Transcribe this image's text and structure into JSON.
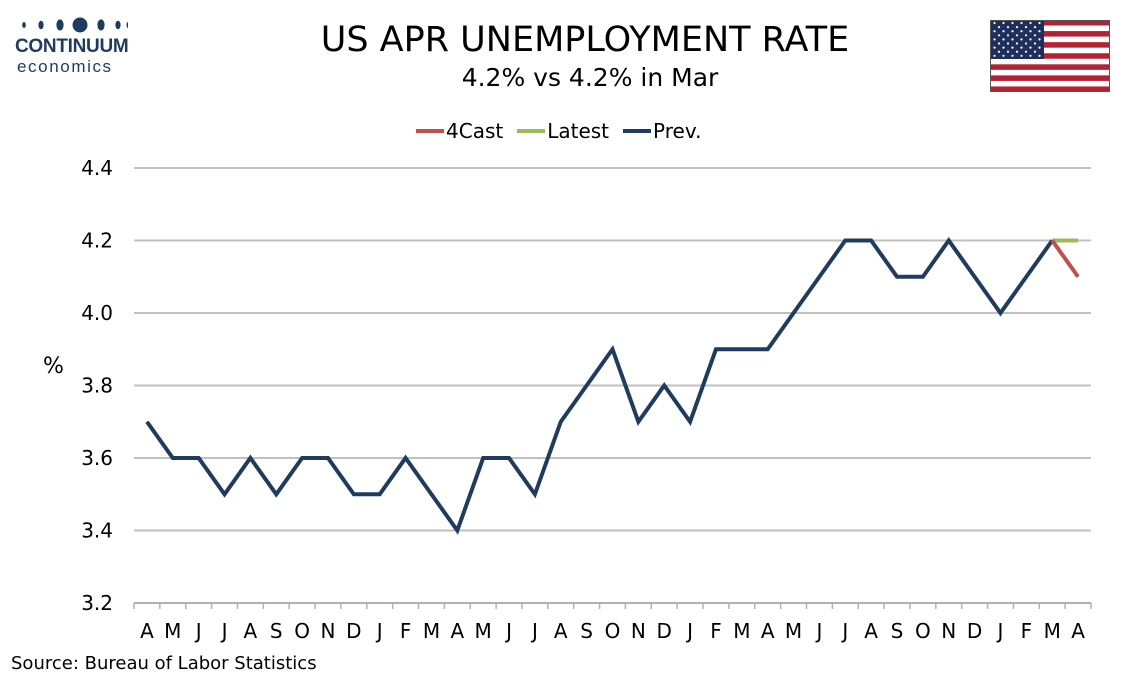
{
  "brand": {
    "name": "CONTINUUM",
    "sub": "economics"
  },
  "title": "US APR UNEMPLOYMENT RATE",
  "subtitle": "4.2% vs 4.2% in Mar",
  "source": "Source: Bureau of Labor Statistics",
  "flag_icon": "us-flag",
  "colors": {
    "forecast": "#c0504d",
    "latest": "#9bbb59",
    "previous": "#1f3b5e",
    "grid": "#c0c0c0"
  },
  "chart_data": {
    "type": "line",
    "title": "US APR UNEMPLOYMENT RATE",
    "subtitle": "4.2% vs 4.2% in Mar",
    "xlabel": "",
    "ylabel": "%",
    "ylim": [
      3.2,
      4.4
    ],
    "yticks": [
      "3.2",
      "3.4",
      "3.6",
      "3.8",
      "4.0",
      "4.2",
      "4.4"
    ],
    "grid": true,
    "legend_position": "top-center",
    "categories": [
      "A",
      "M",
      "J",
      "J",
      "A",
      "S",
      "O",
      "N",
      "D",
      "J",
      "F",
      "M",
      "A",
      "M",
      "J",
      "J",
      "A",
      "S",
      "O",
      "N",
      "D",
      "J",
      "F",
      "M",
      "A",
      "M",
      "J",
      "J",
      "A",
      "S",
      "O",
      "N",
      "D",
      "J",
      "F",
      "M",
      "A"
    ],
    "series": [
      {
        "name": "4Cast",
        "color": "#c0504d",
        "values": [
          null,
          null,
          null,
          null,
          null,
          null,
          null,
          null,
          null,
          null,
          null,
          null,
          null,
          null,
          null,
          null,
          null,
          null,
          null,
          null,
          null,
          null,
          null,
          null,
          null,
          null,
          null,
          null,
          null,
          null,
          null,
          null,
          null,
          null,
          null,
          4.2,
          4.1
        ]
      },
      {
        "name": "Latest",
        "color": "#9bbb59",
        "values": [
          null,
          null,
          null,
          null,
          null,
          null,
          null,
          null,
          null,
          null,
          null,
          null,
          null,
          null,
          null,
          null,
          null,
          null,
          null,
          null,
          null,
          null,
          null,
          null,
          null,
          null,
          null,
          null,
          null,
          null,
          null,
          null,
          null,
          null,
          null,
          4.2,
          4.2
        ]
      },
      {
        "name": "Prev.",
        "color": "#1f3b5e",
        "values": [
          3.7,
          3.6,
          3.6,
          3.5,
          3.6,
          3.5,
          3.6,
          3.6,
          3.5,
          3.5,
          3.6,
          3.5,
          3.4,
          3.6,
          3.6,
          3.5,
          3.7,
          3.8,
          3.9,
          3.7,
          3.8,
          3.7,
          3.9,
          3.9,
          3.9,
          4.0,
          4.1,
          4.2,
          4.2,
          4.1,
          4.1,
          4.2,
          4.1,
          4.0,
          4.1,
          4.2,
          null
        ]
      }
    ]
  }
}
